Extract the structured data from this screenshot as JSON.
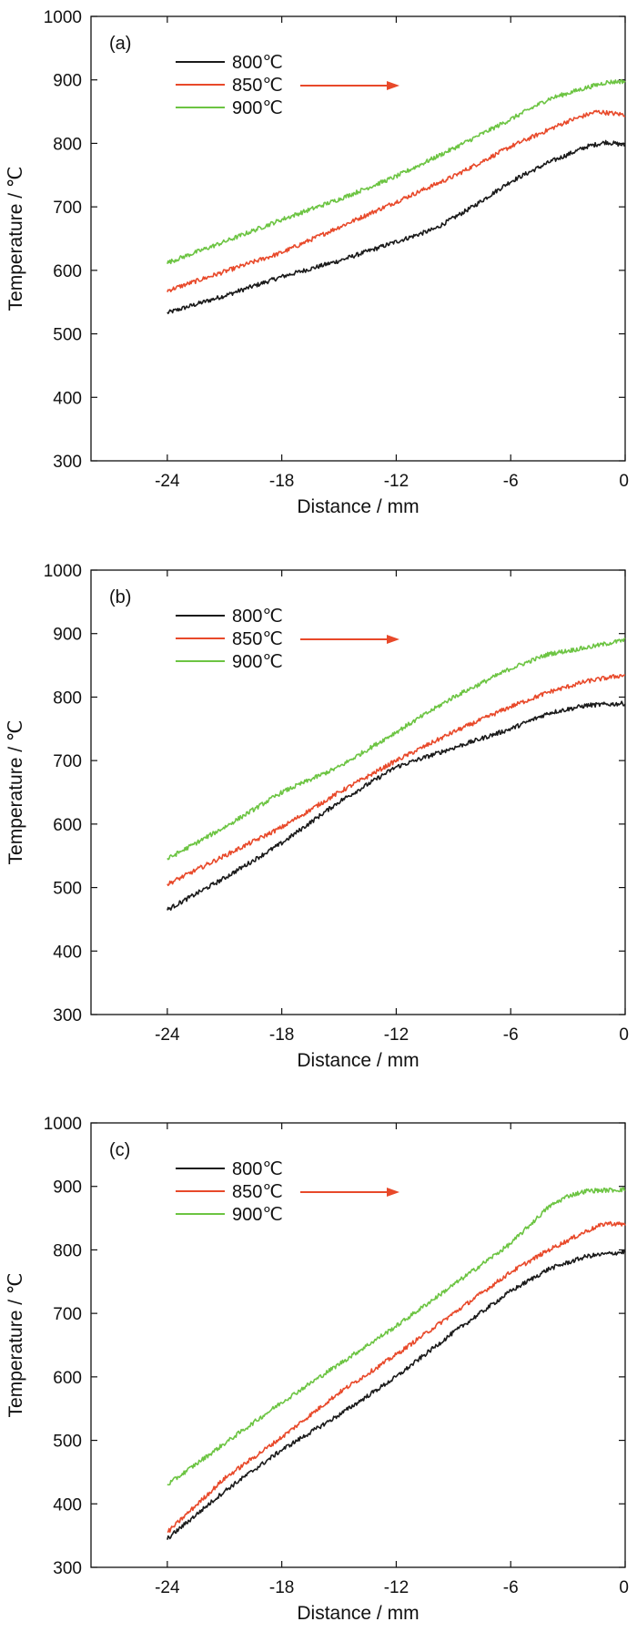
{
  "colors": {
    "s800": "#1a1a1a",
    "s850": "#e8492a",
    "s900": "#6cc442",
    "axis": "#111111"
  },
  "chart_data": [
    {
      "type": "line",
      "panel_label": "(a)",
      "xlabel": "Distance / mm",
      "ylabel": "Temperature / ℃",
      "xlim": [
        -28,
        0
      ],
      "ylim": [
        300,
        1000
      ],
      "xticks": [
        "-24",
        "-18",
        "-12",
        "-6",
        "0"
      ],
      "yticks": [
        "300",
        "400",
        "500",
        "600",
        "700",
        "800",
        "900",
        "1000"
      ],
      "legend": [
        "800℃",
        "850℃",
        "900℃"
      ],
      "series": [
        {
          "name": "800℃",
          "x": [
            -24,
            -21,
            -18,
            -15,
            -12,
            -10,
            -8,
            -6,
            -4,
            -2,
            -1,
            0
          ],
          "y": [
            533,
            560,
            590,
            615,
            645,
            665,
            700,
            740,
            770,
            795,
            802,
            797
          ]
        },
        {
          "name": "850℃",
          "x": [
            -24,
            -21,
            -18,
            -15,
            -12,
            -9,
            -6,
            -3,
            -1.5,
            0
          ],
          "y": [
            568,
            598,
            628,
            668,
            708,
            748,
            795,
            835,
            850,
            845
          ]
        },
        {
          "name": "900℃",
          "x": [
            -24,
            -21,
            -18,
            -15,
            -12,
            -9,
            -6,
            -4,
            -2,
            -1,
            0
          ],
          "y": [
            612,
            645,
            680,
            712,
            748,
            792,
            838,
            870,
            888,
            896,
            898
          ]
        }
      ]
    },
    {
      "type": "line",
      "panel_label": "(b)",
      "xlabel": "Distance / mm",
      "ylabel": "Temperature / ℃",
      "xlim": [
        -28,
        0
      ],
      "ylim": [
        300,
        1000
      ],
      "xticks": [
        "-24",
        "-18",
        "-12",
        "-6",
        "0"
      ],
      "yticks": [
        "300",
        "400",
        "500",
        "600",
        "700",
        "800",
        "900",
        "1000"
      ],
      "legend": [
        "800℃",
        "850℃",
        "900℃"
      ],
      "series": [
        {
          "name": "800℃",
          "x": [
            -24,
            -21,
            -18,
            -15,
            -12,
            -9,
            -6,
            -4,
            -2,
            0
          ],
          "y": [
            465,
            515,
            570,
            635,
            690,
            720,
            750,
            775,
            787,
            790
          ]
        },
        {
          "name": "850℃",
          "x": [
            -24,
            -21,
            -18,
            -15,
            -12,
            -9,
            -6,
            -4,
            -2,
            0
          ],
          "y": [
            505,
            550,
            595,
            650,
            700,
            745,
            785,
            808,
            825,
            835
          ]
        },
        {
          "name": "900℃",
          "x": [
            -24,
            -21,
            -18,
            -15,
            -12,
            -9,
            -6,
            -4,
            -2,
            0
          ],
          "y": [
            545,
            595,
            650,
            690,
            745,
            800,
            845,
            868,
            878,
            890
          ]
        }
      ]
    },
    {
      "type": "line",
      "panel_label": "(c)",
      "xlabel": "Distance / mm",
      "ylabel": "Temperature / ℃",
      "xlim": [
        -28,
        0
      ],
      "ylim": [
        300,
        1000
      ],
      "xticks": [
        "-24",
        "-18",
        "-12",
        "-6",
        "0"
      ],
      "yticks": [
        "300",
        "400",
        "500",
        "600",
        "700",
        "800",
        "900",
        "1000"
      ],
      "legend": [
        "800℃",
        "850℃",
        "900℃"
      ],
      "series": [
        {
          "name": "800℃",
          "x": [
            -24,
            -21,
            -18,
            -15,
            -12,
            -9,
            -6,
            -4,
            -2,
            0
          ],
          "y": [
            345,
            420,
            485,
            540,
            600,
            670,
            735,
            770,
            790,
            797
          ]
        },
        {
          "name": "850℃",
          "x": [
            -24,
            -21,
            -18,
            -15,
            -12,
            -9,
            -6,
            -4,
            -2,
            -1,
            0
          ],
          "y": [
            355,
            440,
            505,
            575,
            635,
            700,
            765,
            800,
            830,
            842,
            840
          ]
        },
        {
          "name": "900℃",
          "x": [
            -24,
            -21,
            -18,
            -15,
            -12,
            -9,
            -6,
            -4,
            -3,
            -2,
            0
          ],
          "y": [
            430,
            495,
            560,
            620,
            680,
            745,
            810,
            868,
            885,
            893,
            895
          ]
        }
      ]
    }
  ]
}
